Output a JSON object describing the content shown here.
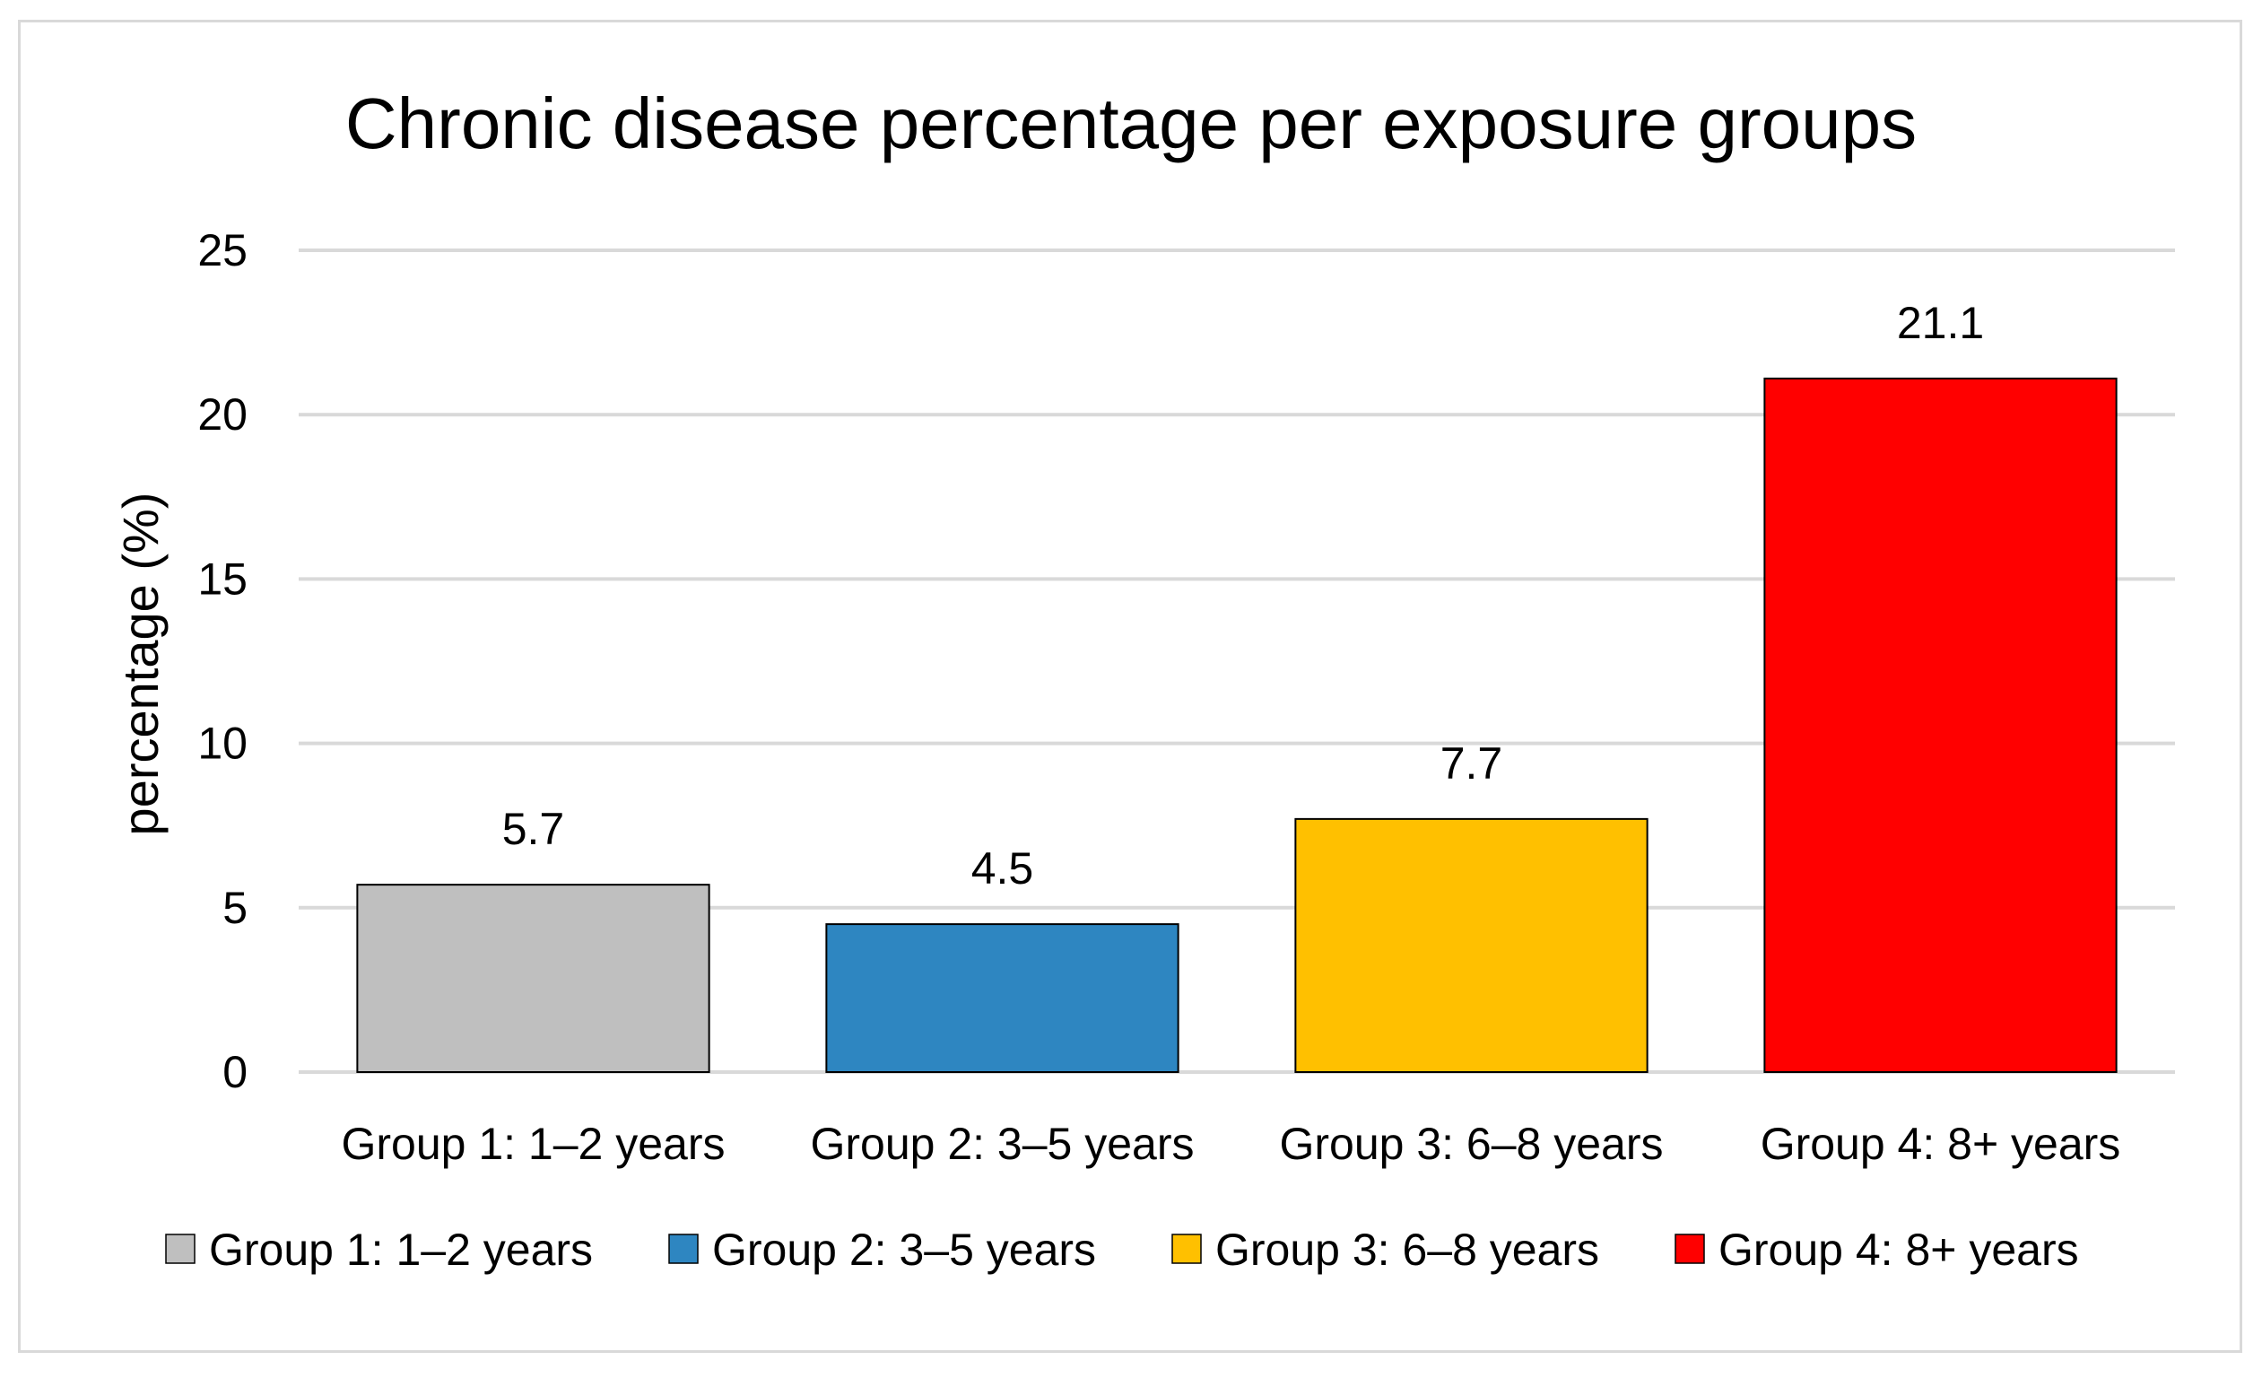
{
  "chart_data": {
    "type": "bar",
    "title": "Chronic disease percentage per exposure groups",
    "xlabel": "",
    "ylabel": "percentage (%)",
    "categories": [
      "Group 1: 1–2 years",
      "Group 2: 3–5 years",
      "Group 3: 6–8 years",
      "Group 4: 8+ years"
    ],
    "values": [
      5.7,
      4.5,
      7.7,
      21.1
    ],
    "data_labels": [
      "5.7",
      "4.5",
      "7.7",
      "21.1"
    ],
    "colors": [
      "#bfbfbf",
      "#2e86c1",
      "#ffc000",
      "#ff0000"
    ],
    "ylim": [
      0,
      25
    ],
    "yticks": [
      0,
      5,
      10,
      15,
      20,
      25
    ],
    "ytick_labels": [
      "0",
      "5",
      "10",
      "15",
      "20",
      "25"
    ],
    "grid": true,
    "legend": {
      "placement": "bottom",
      "entries": [
        "Group 1: 1–2 years",
        "Group 2: 3–5 years",
        "Group 3: 6–8 years",
        "Group 4: 8+ years"
      ]
    }
  }
}
